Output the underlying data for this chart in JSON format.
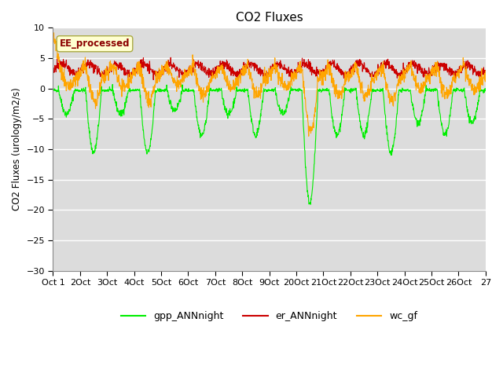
{
  "title": "CO2 Fluxes",
  "ylabel": "CO2 Fluxes (urology/m2/s)",
  "xlabel": "",
  "ylim": [
    -30,
    10
  ],
  "yticks": [
    10,
    5,
    0,
    -5,
    -10,
    -15,
    -20,
    -25,
    -30
  ],
  "tick_labels": [
    "Oct 1",
    "2Oct",
    "3Oct",
    "4Oct",
    "5Oct",
    "6Oct",
    "7Oct",
    "8Oct",
    "9Oct",
    "20Oct",
    "21Oct",
    "22Oct",
    "23Oct",
    "24Oct",
    "25Oct",
    "26Oct",
    "27"
  ],
  "annotation_text": "EE_processed",
  "annotation_color": "#8B0000",
  "annotation_bg": "#FFFFD0",
  "line_gpp_color": "#00EE00",
  "line_er_color": "#CC0000",
  "line_wc_color": "#FFA500",
  "legend_labels": [
    "gpp_ANNnight",
    "er_ANNnight",
    "wc_gf"
  ],
  "bg_color": "#DCDCDC",
  "fig_bg_color": "#FFFFFF",
  "n_points": 1600,
  "seed": 42
}
